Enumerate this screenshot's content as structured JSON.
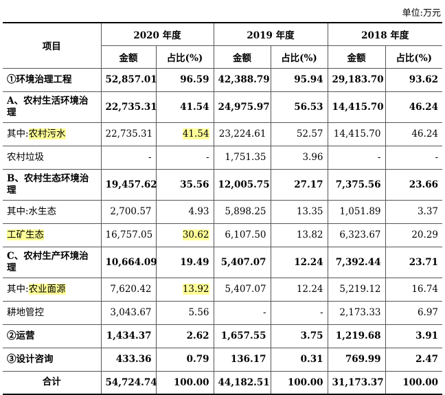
{
  "unit_label": "单位:万元",
  "header": {
    "item": "项目",
    "years": [
      "2020 年度",
      "2019 年度",
      "2018 年度"
    ],
    "amount": "金额",
    "ratio": "占比(%)"
  },
  "rows": [
    {
      "name": "①环境治理工程",
      "bold": true,
      "two_line": false,
      "cells": [
        "52,857.01",
        "96.59",
        "42,388.79",
        "95.94",
        "29,183.70",
        "93.62"
      ]
    },
    {
      "name": "A、农村生活环境治理",
      "bold": true,
      "two_line": true,
      "cells": [
        "22,735.31",
        "41.54",
        "24,975.97",
        "56.53",
        "14,415.70",
        "46.24"
      ]
    },
    {
      "name_prefix": "其中:",
      "name": "农村污水",
      "name_highlight": true,
      "bold": false,
      "two_line": false,
      "highlight_cells": [
        1
      ],
      "cells": [
        "22,735.31",
        "41.54",
        "23,224.61",
        "52.57",
        "14,415.70",
        "46.24"
      ]
    },
    {
      "name": "农村垃圾",
      "bold": false,
      "two_line": false,
      "cells": [
        "-",
        "-",
        "1,751.35",
        "3.96",
        "-",
        "-"
      ]
    },
    {
      "name": "B、农村生态环境治理",
      "bold": true,
      "two_line": true,
      "cells": [
        "19,457.62",
        "35.56",
        "12,005.75",
        "27.17",
        "7,375.56",
        "23.66"
      ]
    },
    {
      "name": "其中:水生态",
      "bold": false,
      "two_line": false,
      "cells": [
        "2,700.57",
        "4.93",
        "5,898.25",
        "13.35",
        "1,051.89",
        "3.37"
      ]
    },
    {
      "name": "工矿生态",
      "name_highlight": true,
      "bold": false,
      "two_line": false,
      "highlight_cells": [
        1
      ],
      "cells": [
        "16,757.05",
        "30.62",
        "6,107.50",
        "13.82",
        "6,323.67",
        "20.29"
      ]
    },
    {
      "name": "C、农村生产环境治理",
      "bold": true,
      "two_line": true,
      "cells": [
        "10,664.09",
        "19.49",
        "5,407.07",
        "12.24",
        "7,392.44",
        "23.71"
      ]
    },
    {
      "name_prefix": "其中:",
      "name": "农业面源",
      "name_highlight": true,
      "bold": false,
      "two_line": false,
      "highlight_cells": [
        1
      ],
      "cells": [
        "7,620.42",
        "13.92",
        "5,407.07",
        "12.24",
        "5,219.12",
        "16.74"
      ]
    },
    {
      "name": "耕地管控",
      "bold": false,
      "two_line": false,
      "cells": [
        "3,043.67",
        "5.56",
        "-",
        "-",
        "2,173.33",
        "6.97"
      ]
    },
    {
      "name": "②运营",
      "bold": true,
      "two_line": false,
      "cells": [
        "1,434.37",
        "2.62",
        "1,657.55",
        "3.75",
        "1,219.68",
        "3.91"
      ]
    },
    {
      "name": "③设计咨询",
      "bold": true,
      "two_line": false,
      "cells": [
        "433.36",
        "0.79",
        "136.17",
        "0.31",
        "769.99",
        "2.47"
      ]
    },
    {
      "name": "合计",
      "bold": true,
      "two_line": false,
      "total": true,
      "cells": [
        "54,724.74",
        "100.00",
        "44,182.51",
        "100.00",
        "31,173.37",
        "100.00"
      ]
    }
  ],
  "colors": {
    "highlight": "#ffff99"
  }
}
